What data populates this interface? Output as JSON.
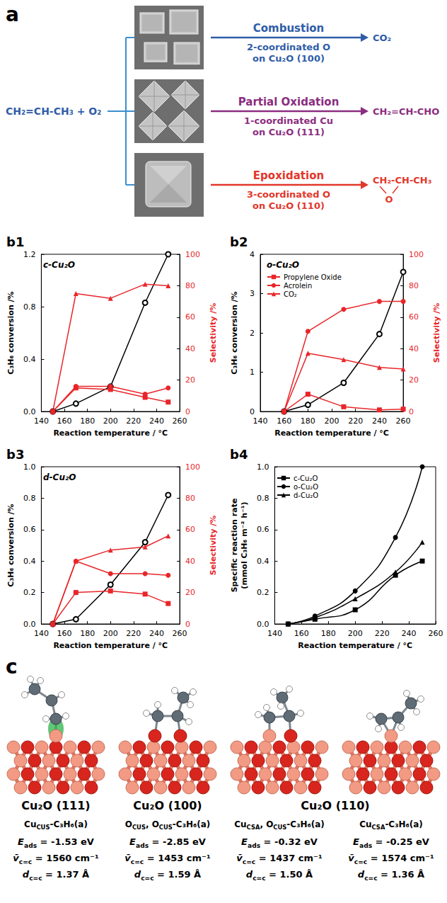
{
  "panel_a": {
    "label": "a",
    "reactant": "CH₂=CH-CH₃ + O₂",
    "routes": [
      {
        "reaction": "Combustion",
        "site": [
          "2-coordinated O",
          "on Cu₂O (100)"
        ],
        "product": "CO₂",
        "color": "#2f5da8"
      },
      {
        "reaction": "Partial Oxidation",
        "site": [
          "1-coordinated Cu",
          "on Cu₂O (111)"
        ],
        "product": "CH₂=CH-CHO",
        "color": "#8b2d80"
      },
      {
        "reaction": "Epoxidation",
        "site": [
          "3-coordinated O",
          "on Cu₂O (110)"
        ],
        "product": "CH₂-CH-CH₃",
        "product_bridge": "O",
        "color": "#e2372b"
      }
    ]
  },
  "chart_data": [
    {
      "type": "line",
      "panel_label": "b1",
      "title": "c-Cu₂O",
      "xlabel": "Reaction temperature / °C",
      "ylabel": "C₃H₆ conversion /%",
      "y2label": "Selectivity /%",
      "x": [
        150,
        170,
        200,
        230,
        250
      ],
      "xlim": [
        140,
        260
      ],
      "xticks": [
        140,
        160,
        180,
        200,
        220,
        240,
        260
      ],
      "ylim": [
        0,
        1.2
      ],
      "yticks": [
        {
          "value": 0,
          "label": "0.0"
        },
        0.4,
        0.8,
        1.2
      ],
      "y2lim": [
        0,
        100
      ],
      "y2ticks": [
        0,
        20,
        40,
        60,
        80,
        100
      ],
      "grid": false,
      "series": [
        {
          "color": "#000000",
          "marker": "open circle",
          "line_style": "solid",
          "values": [
            0,
            0.06,
            0.19,
            0.83,
            1.2
          ]
        },
        {
          "color": "#e8262a",
          "marker": "square",
          "line_style": "solid",
          "axis": "y2",
          "values": [
            0,
            15,
            14,
            9,
            6
          ]
        },
        {
          "color": "#e8262a",
          "marker": "circle",
          "line_style": "solid",
          "axis": "y2",
          "values": [
            0,
            16,
            16,
            11,
            15
          ]
        },
        {
          "color": "#e8262a",
          "marker": "triangle",
          "line_style": "solid",
          "axis": "y2",
          "values": [
            0,
            75,
            72,
            81,
            80
          ]
        }
      ]
    },
    {
      "type": "line",
      "panel_label": "b2",
      "title": "o-Cu₂O",
      "xlabel": "Reaction temperature / °C",
      "ylabel": "C₃H₆ conversion /%",
      "y2label": "Selectivity /%",
      "x": [
        160,
        180,
        210,
        240,
        260
      ],
      "xlim": [
        140,
        260
      ],
      "xticks": [
        140,
        160,
        180,
        200,
        220,
        240,
        260
      ],
      "ylim": [
        0,
        4
      ],
      "yticks": [
        0,
        1,
        2,
        3,
        4
      ],
      "y2lim": [
        0,
        100
      ],
      "y2ticks": [
        0,
        20,
        40,
        60,
        80,
        100
      ],
      "grid": false,
      "legend": "upper left",
      "series": [
        {
          "color": "#000000",
          "marker": "open circle",
          "line_style": "solid",
          "values": [
            0,
            0.17,
            0.73,
            1.97,
            3.55
          ]
        },
        {
          "name": "Propylene Oxide",
          "color": "#e8262a",
          "marker": "square",
          "line_style": "solid",
          "axis": "y2",
          "values": [
            0,
            11,
            3,
            1,
            1.5
          ]
        },
        {
          "name": "Acrolein",
          "color": "#e8262a",
          "marker": "circle",
          "line_style": "solid",
          "axis": "y2",
          "values": [
            0,
            51,
            65,
            70,
            70
          ]
        },
        {
          "name": "CO₂",
          "color": "#e8262a",
          "marker": "triangle",
          "line_style": "solid",
          "axis": "y2",
          "values": [
            0,
            37,
            33,
            28,
            27
          ]
        }
      ]
    },
    {
      "type": "line",
      "panel_label": "b3",
      "title": "d-Cu₂O",
      "xlabel": "Reaction temperature / °C",
      "ylabel": "C₃H₆ conversion /%",
      "y2label": "Selectivity /%",
      "x": [
        150,
        170,
        200,
        230,
        250
      ],
      "xlim": [
        140,
        260
      ],
      "xticks": [
        140,
        160,
        180,
        200,
        220,
        240,
        260
      ],
      "ylim": [
        0,
        1.0
      ],
      "yticks": [
        {
          "value": 0,
          "label": "0.0"
        },
        0.2,
        0.4,
        0.6,
        0.8,
        {
          "value": 1.0,
          "label": "1.0"
        }
      ],
      "y2lim": [
        0,
        100
      ],
      "y2ticks": [
        0,
        20,
        40,
        60,
        80,
        100
      ],
      "grid": false,
      "series": [
        {
          "color": "#000000",
          "marker": "open circle",
          "line_style": "solid",
          "values": [
            0,
            0.03,
            0.25,
            0.52,
            0.82
          ]
        },
        {
          "color": "#e8262a",
          "marker": "square",
          "line_style": "solid",
          "axis": "y2",
          "values": [
            0,
            20,
            21,
            19,
            13
          ]
        },
        {
          "color": "#e8262a",
          "marker": "circle",
          "line_style": "solid",
          "axis": "y2",
          "values": [
            0,
            40,
            32,
            32,
            31
          ]
        },
        {
          "color": "#e8262a",
          "marker": "triangle",
          "line_style": "solid",
          "axis": "y2",
          "values": [
            0,
            40,
            47,
            49,
            56
          ]
        }
      ]
    },
    {
      "type": "line",
      "panel_label": "b4",
      "xlabel": "Reaction temperature / °C",
      "ylabel": "Specific reaction rate (mmol C₃H₆ m⁻² h⁻¹)",
      "x": [
        150,
        170,
        200,
        230,
        250
      ],
      "xlim": [
        140,
        260
      ],
      "xticks": [
        140,
        160,
        180,
        200,
        220,
        240,
        260
      ],
      "ylim": [
        0,
        1.0
      ],
      "yticks": [
        {
          "value": 0,
          "label": "0.0"
        },
        0.2,
        0.4,
        0.6,
        0.8,
        {
          "value": 1.0,
          "label": "1.0"
        }
      ],
      "grid": false,
      "legend": "upper left",
      "series": [
        {
          "name": "c-Cu₂O",
          "color": "#000000",
          "marker": "square",
          "line_style": "smooth",
          "values": [
            0,
            0.03,
            0.09,
            0.31,
            0.4
          ]
        },
        {
          "name": "o-Cu₂O",
          "color": "#000000",
          "marker": "circle",
          "line_style": "smooth",
          "values": [
            0,
            0.05,
            0.21,
            0.55,
            1.0
          ]
        },
        {
          "name": "d-Cu₂O",
          "color": "#000000",
          "marker": "triangle",
          "line_style": "smooth",
          "values": [
            0,
            0.04,
            0.16,
            0.33,
            0.52
          ]
        }
      ]
    }
  ],
  "panel_c": {
    "label": "c",
    "surfaces": [
      {
        "label": "Cu₂O (111)",
        "structures": [
          {
            "site": [
              {
                "text": "Cu",
                "sub": "CUS"
              },
              {
                "text": "-C₃H₆(a)"
              }
            ],
            "properties": [
              {
                "symbol": "E",
                "sub": "ads",
                "text": " = -1.53 eV"
              },
              {
                "symbol": "v̄",
                "sub": "c=c",
                "text": " = 1560 cm⁻¹"
              },
              {
                "symbol": "d",
                "sub": "c=c",
                "text": " = 1.37 Å"
              }
            ]
          }
        ]
      },
      {
        "label": "Cu₂O (100)",
        "structures": [
          {
            "site": [
              {
                "text": "O",
                "sub": "CUS"
              },
              {
                "text": ", O",
                "sub": "CUS"
              },
              {
                "text": "-C₃H₆(a)"
              }
            ],
            "properties": [
              {
                "symbol": "E",
                "sub": "ads",
                "text": " = -2.85 eV"
              },
              {
                "symbol": "v̄",
                "sub": "c=c",
                "text": " = 1453 cm⁻¹"
              },
              {
                "symbol": "d",
                "sub": "c=c",
                "text": " = 1.59 Å"
              }
            ]
          }
        ]
      },
      {
        "label": "Cu₂O (110)",
        "structures": [
          {
            "site": [
              {
                "text": "Cu",
                "sub": "CSA"
              },
              {
                "text": ", O",
                "sub": "CUS"
              },
              {
                "text": "-C₃H₆(a)"
              }
            ],
            "properties": [
              {
                "symbol": "E",
                "sub": "ads",
                "text": " = -0.32 eV"
              },
              {
                "symbol": "v̄",
                "sub": "c=c",
                "text": " = 1437 cm⁻¹"
              },
              {
                "symbol": "d",
                "sub": "c=c",
                "text": " = 1.50 Å"
              }
            ]
          },
          {
            "site": [
              {
                "text": "Cu",
                "sub": "CSA"
              },
              {
                "text": "-C₃H₆(a)"
              }
            ],
            "properties": [
              {
                "symbol": "E",
                "sub": "ads",
                "text": " = -0.25 eV"
              },
              {
                "symbol": "v̄",
                "sub": "c=c",
                "text": " = 1574 cm⁻¹"
              },
              {
                "symbol": "d",
                "sub": "c=c",
                "text": " = 1.36 Å"
              }
            ]
          }
        ]
      }
    ]
  }
}
